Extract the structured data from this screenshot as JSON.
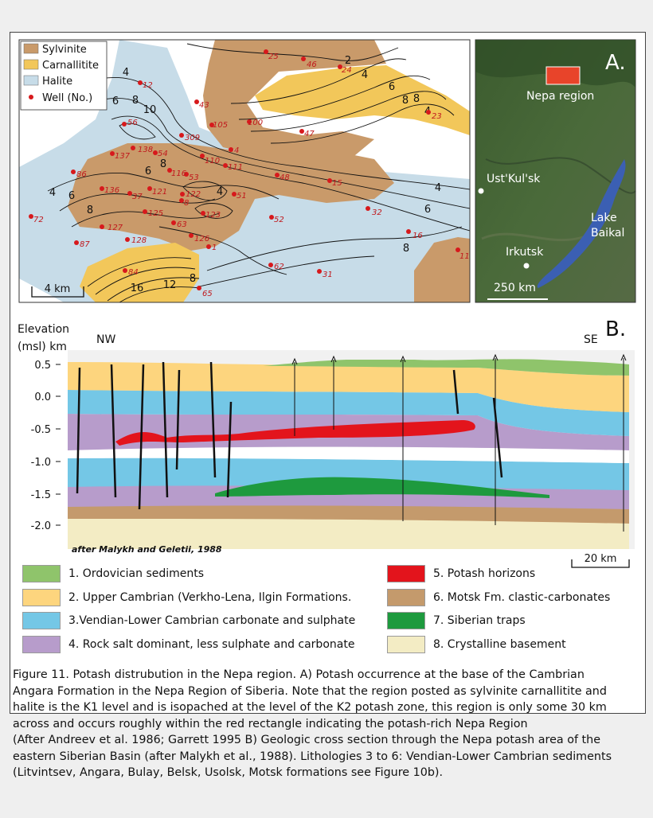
{
  "map": {
    "legend": [
      {
        "label": "Sylvinite",
        "color": "#c99a6a"
      },
      {
        "label": "Carnallitite",
        "color": "#f2c75a"
      },
      {
        "label": "Halite",
        "color": "#c7dce8"
      },
      {
        "label": "Well (No.)",
        "color": "#d7191c"
      }
    ],
    "scale_label": "4 km",
    "wells": [
      "25",
      "46",
      "24",
      "12",
      "43",
      "23",
      "56",
      "105",
      "100",
      "47",
      "309",
      "4",
      "137",
      "138",
      "54",
      "110",
      "111",
      "86",
      "116",
      "53",
      "48",
      "15",
      "136",
      "37",
      "121",
      "122",
      "51",
      "8",
      "125",
      "63",
      "123",
      "52",
      "32",
      "72",
      "127",
      "126",
      "16",
      "87",
      "128",
      "1",
      "11",
      "84",
      "62",
      "31",
      "65"
    ],
    "contour_labels": [
      "2",
      "4",
      "4",
      "6",
      "6",
      "8",
      "8",
      "8",
      "10",
      "4",
      "6",
      "8",
      "4",
      "6",
      "8",
      "4",
      "4",
      "6",
      "8",
      "12",
      "16",
      "8"
    ]
  },
  "inset": {
    "panel_label": "A.",
    "region_label": "Nepa region",
    "places": [
      "Ust'Kul'sk",
      "Lake",
      "Baikal",
      "Irkutsk"
    ],
    "scale_label": "250 km"
  },
  "section": {
    "panel_label": "B.",
    "y_title_1": "Elevation",
    "y_title_2": "(msl) km",
    "left_label": "NW",
    "right_label": "SE",
    "ticks": [
      "0.5",
      "0.0",
      "-0.5",
      "-1.0",
      "-1.5",
      "-2.0"
    ],
    "credit": "after Malykh and Geletii, 1988",
    "scale_label": "20 km"
  },
  "legend": [
    {
      "label": "1. Ordovician sediments",
      "color": "#8fc46b"
    },
    {
      "label": "2. Upper Cambrian (Verkho-Lena, Ilgin Formations.",
      "color": "#fdd57e"
    },
    {
      "label": "3.Vendian-Lower Cambrian carbonate and sulphate",
      "color": "#74c7e6"
    },
    {
      "label": "4. Rock salt dominant, less sulphate and carbonate",
      "color": "#b79ccb"
    },
    {
      "label": "5. Potash horizons",
      "color": "#e3141c"
    },
    {
      "label": "6. Motsk Fm. clastic-carbonates",
      "color": "#c49a6c"
    },
    {
      "label": "7. Siberian traps",
      "color": "#1e9a3e"
    },
    {
      "label": "8. Crystalline basement",
      "color": "#f3ecc4"
    }
  ],
  "caption": [
    "Figure 11. Potash distrubution in the Nepa region. A) Potash occurrence at the base of the Cambrian",
    "Angara Formation in the Nepa Region of Siberia. Note that the region posted as sylvinite carnallitite and",
    "halite is the K1 level and is isopached at the level of the K2 potash zone, this region is only some 30 km",
    "across and occurs roughly within the red rectangle indicating the potash-rich Nepa Region",
    "(After Andreev et al. 1986; Garrett 1995 B) Geologic cross section through the Nepa potash area of the",
    "eastern Siberian Basin (after Malykh et al., 1988). Lithologies 3 to 6: Vendian-Lower Cambrian sediments",
    "(Litvintsev, Angara, Bulay, Belsk, Usolsk, Motsk formations see Figure 10b)."
  ]
}
